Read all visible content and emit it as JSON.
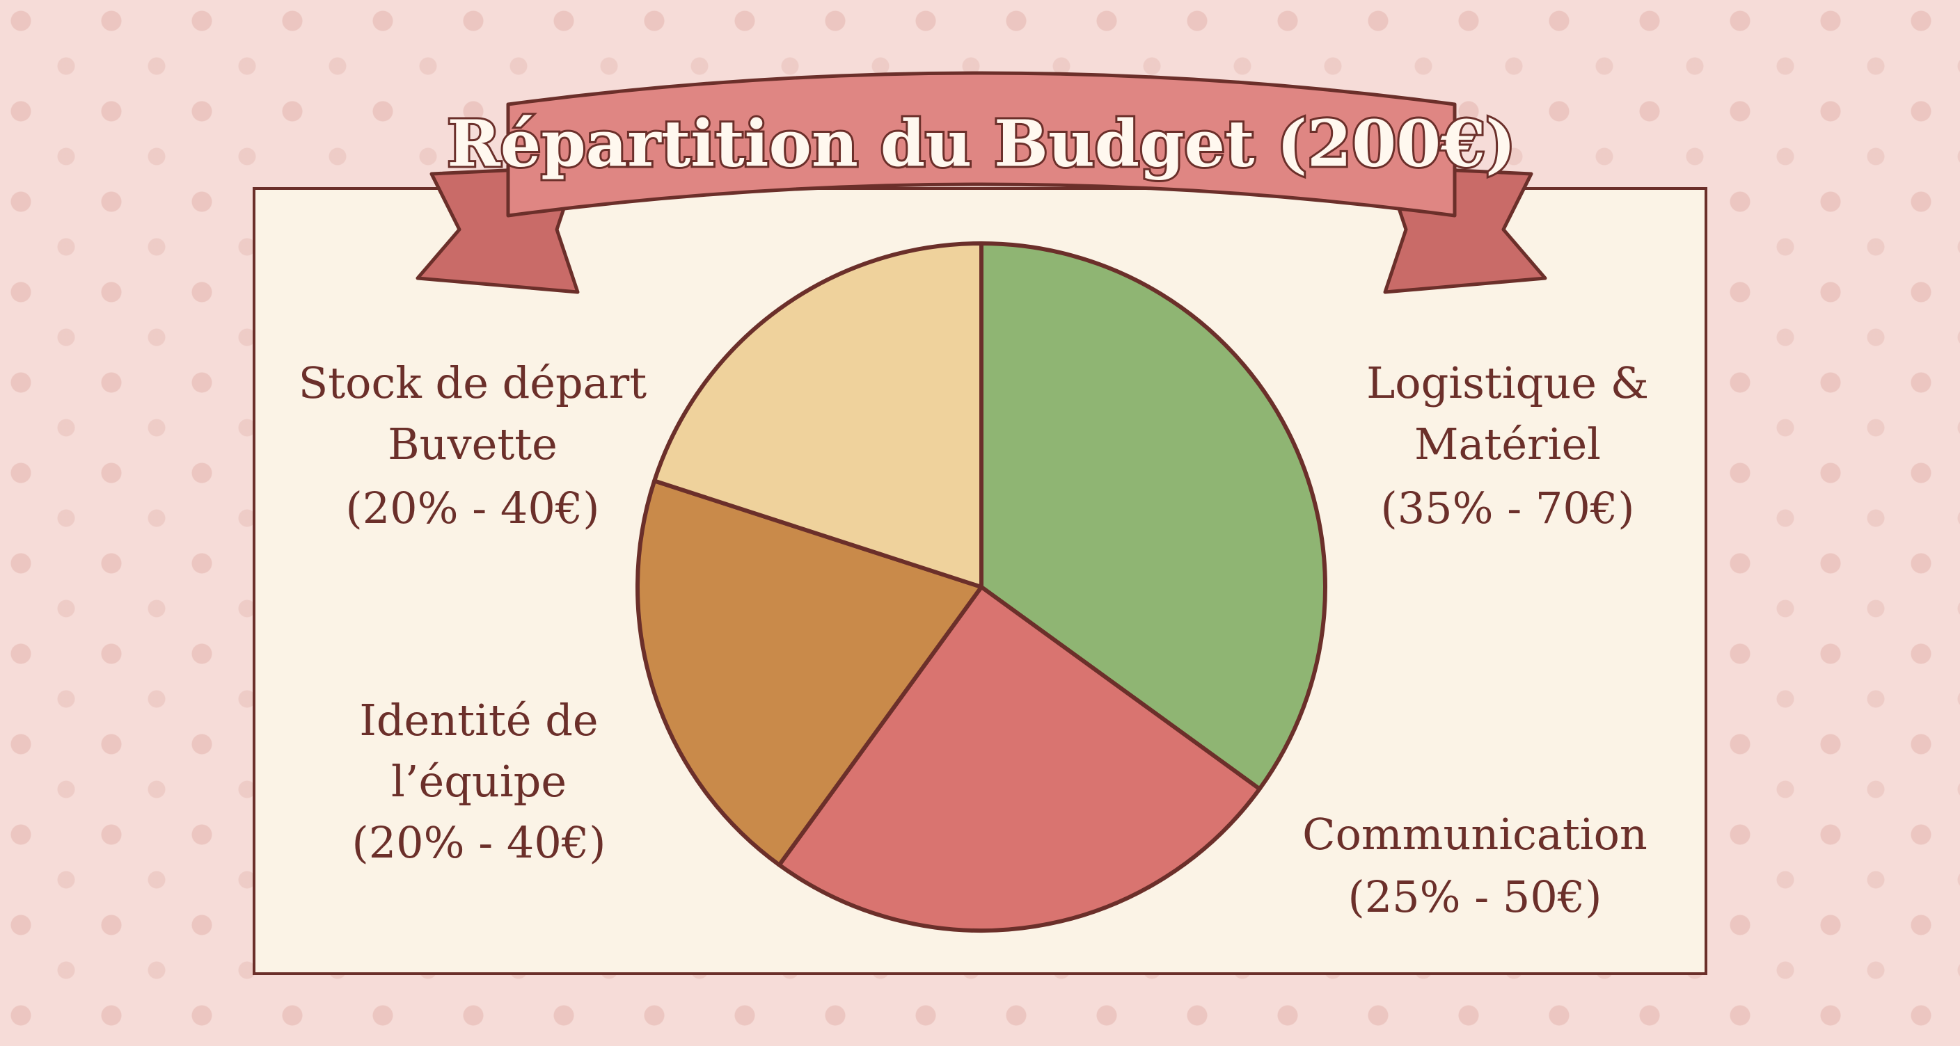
{
  "chart_data": {
    "type": "pie",
    "title": "Répartition du Budget (200€)",
    "categories": [
      "Logistique &\nMatériel",
      "Communication",
      "Identité de\nl’équipe",
      "Stock de départ\nBuvette"
    ],
    "values": [
      35,
      25,
      20,
      20
    ],
    "value_labels": [
      "(35% - 70€)",
      "(25% - 50€)",
      "(20% - 40€)",
      "(20% - 40€)"
    ],
    "colors": [
      "#8fb573",
      "#d97470",
      "#c98a4a",
      "#efd29c"
    ]
  }
}
